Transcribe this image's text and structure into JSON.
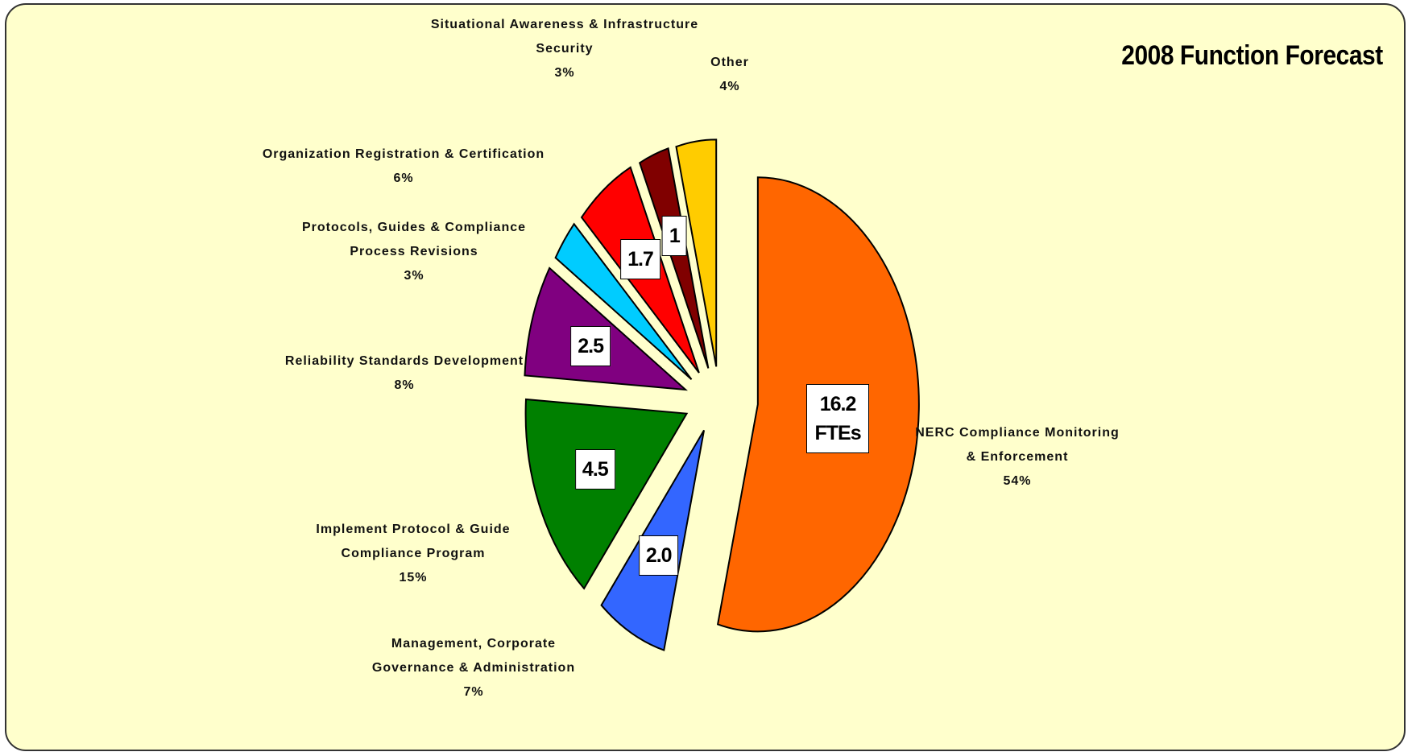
{
  "chart_data": {
    "type": "pie",
    "title": "2008 Function Forecast",
    "categories": [
      "NERC Compliance Monitoring & Enforcement",
      "Management, Corporate Governance & Administration",
      "Implement Protocol & Guide Compliance Program",
      "Reliability Standards Development",
      "Protocols, Guides & Compliance Process Revisions",
      "Organization Registration & Certification",
      "Situational Awareness & Infrastructure Security",
      "Other"
    ],
    "values": [
      54,
      7,
      15,
      8,
      3,
      6,
      3,
      4
    ],
    "value_labels": [
      "54%",
      "7%",
      "15%",
      "8%",
      "3%",
      "6%",
      "3%",
      "4%"
    ],
    "fte_labels": [
      "16.2 FTEs",
      "2.0",
      "4.5",
      "2.5",
      null,
      "1.7",
      "1",
      null
    ],
    "colors": [
      "#ff6600",
      "#3366ff",
      "#008000",
      "#800080",
      "#00ccff",
      "#ff0000",
      "#800000",
      "#ffcc00"
    ]
  }
}
